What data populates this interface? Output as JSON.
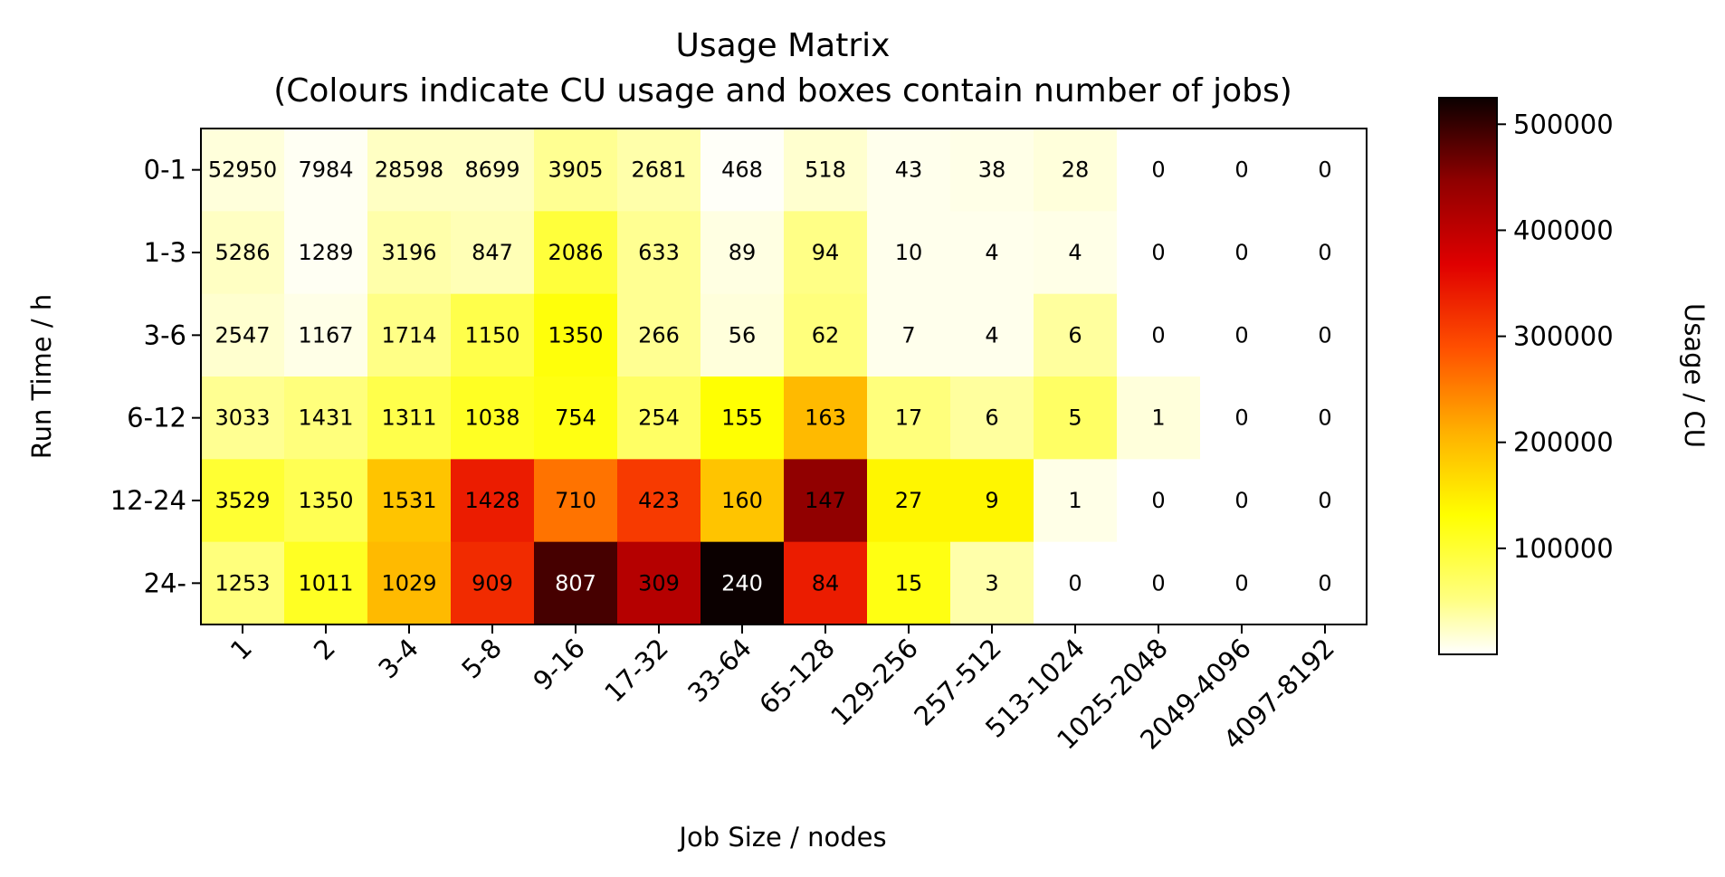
{
  "chart_data": {
    "type": "heatmap",
    "title": "Usage Matrix",
    "subtitle": "(Colours indicate CU usage and boxes contain number of jobs)",
    "xlabel": "Job Size / nodes",
    "ylabel": "Run Time / h",
    "colorbar_label": "Usage / CU",
    "colormap": "hot_r",
    "colorbar_range": [
      0,
      525000
    ],
    "colorbar_ticks": [
      100000,
      200000,
      300000,
      400000,
      500000
    ],
    "colorbar_tick_labels": [
      "100000",
      "200000",
      "300000",
      "400000",
      "500000"
    ],
    "x_categories": [
      "1",
      "2",
      "3-4",
      "5-8",
      "9-16",
      "17-32",
      "33-64",
      "65-128",
      "129-256",
      "257-512",
      "513-1024",
      "1025-2048",
      "2049-4096",
      "4097-8192"
    ],
    "y_categories": [
      "0-1",
      "1-3",
      "3-6",
      "6-12",
      "12-24",
      "24-"
    ],
    "job_counts": [
      [
        52950,
        7984,
        28598,
        8699,
        3905,
        2681,
        468,
        518,
        43,
        38,
        28,
        0,
        0,
        0
      ],
      [
        5286,
        1289,
        3196,
        847,
        2086,
        633,
        89,
        94,
        10,
        4,
        4,
        0,
        0,
        0
      ],
      [
        2547,
        1167,
        1714,
        1150,
        1350,
        266,
        56,
        62,
        7,
        4,
        6,
        0,
        0,
        0
      ],
      [
        3033,
        1431,
        1311,
        1038,
        754,
        254,
        155,
        163,
        17,
        6,
        5,
        1,
        0,
        0
      ],
      [
        3529,
        1350,
        1531,
        1428,
        710,
        423,
        160,
        147,
        27,
        9,
        1,
        0,
        0,
        0
      ],
      [
        1253,
        1011,
        1029,
        909,
        807,
        309,
        240,
        84,
        15,
        3,
        0,
        0,
        0,
        0
      ]
    ],
    "usage": [
      [
        15000,
        5000,
        25000,
        25000,
        45000,
        35000,
        3000,
        20000,
        8000,
        10000,
        15000,
        0,
        0,
        0
      ],
      [
        25000,
        5000,
        35000,
        30000,
        95000,
        45000,
        12000,
        50000,
        8000,
        8000,
        10000,
        0,
        0,
        0
      ],
      [
        20000,
        10000,
        50000,
        85000,
        125000,
        45000,
        15000,
        55000,
        8000,
        8000,
        40000,
        0,
        0,
        0
      ],
      [
        45000,
        55000,
        85000,
        110000,
        120000,
        70000,
        130000,
        200000,
        55000,
        40000,
        70000,
        15000,
        0,
        0
      ],
      [
        100000,
        80000,
        190000,
        340000,
        260000,
        310000,
        190000,
        445000,
        140000,
        140000,
        10000,
        0,
        0,
        0
      ],
      [
        55000,
        110000,
        200000,
        325000,
        490000,
        410000,
        525000,
        340000,
        120000,
        35000,
        0,
        0,
        0,
        0
      ]
    ]
  }
}
